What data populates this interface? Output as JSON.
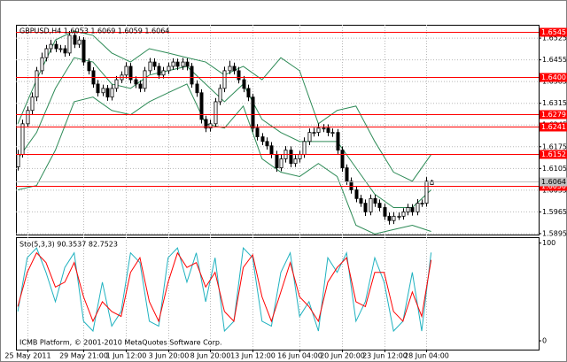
{
  "chart_data": [
    {
      "type": "candlestick",
      "title": "GBPUSD,H4  1.6053 1.6069 1.6059 1.6064",
      "annotation": "ICMB Platform, © 2001-2010 MetaQuotes Software Corp.",
      "open": [
        1.611,
        1.615,
        1.6249,
        1.6292,
        1.6335,
        1.642,
        1.6462,
        1.6491,
        1.6505,
        1.6491,
        1.6491,
        1.6477,
        1.6534,
        1.6505,
        1.6519,
        1.6448,
        1.642,
        1.6377,
        1.6349,
        1.6363,
        1.6335,
        1.6363,
        1.6391,
        1.6406,
        1.6434,
        1.6391,
        1.6377,
        1.6363,
        1.642,
        1.6448,
        1.6434,
        1.6406,
        1.642,
        1.6434,
        1.6448,
        1.6434,
        1.6448,
        1.6434,
        1.6377,
        1.6349,
        1.6263,
        1.6235,
        1.6249,
        1.632,
        1.6363,
        1.642,
        1.6434,
        1.642,
        1.6391,
        1.6363,
        1.6335,
        1.6235,
        1.6207,
        1.6192,
        1.6178,
        1.615,
        1.6107,
        1.6136,
        1.6164,
        1.6121,
        1.6136,
        1.615,
        1.6192,
        1.6221,
        1.6221,
        1.6235,
        1.6235,
        1.6221,
        1.6221,
        1.6164,
        1.6107,
        1.6064,
        1.6036,
        1.6008,
        1.5993,
        1.5965,
        1.6008,
        1.5993,
        1.5979,
        1.5951,
        1.5937,
        1.5951,
        1.5951,
        1.5965,
        1.5979,
        1.5965,
        1.5993,
        1.5993,
        1.6053
      ],
      "high": [
        1.6165,
        1.6262,
        1.6305,
        1.635,
        1.6432,
        1.6478,
        1.6503,
        1.652,
        1.6517,
        1.6503,
        1.6502,
        1.6548,
        1.6546,
        1.6531,
        1.6528,
        1.646,
        1.6431,
        1.639,
        1.6375,
        1.6374,
        1.6376,
        1.6403,
        1.6418,
        1.6447,
        1.6445,
        1.6402,
        1.6389,
        1.6432,
        1.6461,
        1.646,
        1.6445,
        1.6432,
        1.6446,
        1.646,
        1.6459,
        1.6461,
        1.646,
        1.6445,
        1.6389,
        1.636,
        1.6275,
        1.6262,
        1.6332,
        1.6376,
        1.6433,
        1.6452,
        1.6446,
        1.6432,
        1.6403,
        1.6375,
        1.6346,
        1.6248,
        1.6219,
        1.6205,
        1.619,
        1.6162,
        1.6149,
        1.6177,
        1.6176,
        1.6148,
        1.6162,
        1.6205,
        1.6234,
        1.6236,
        1.625,
        1.6248,
        1.6247,
        1.6234,
        1.6232,
        1.6176,
        1.6118,
        1.6076,
        1.6048,
        1.602,
        1.6005,
        1.6021,
        1.602,
        1.6005,
        1.5991,
        1.5963,
        1.5964,
        1.5963,
        1.5977,
        1.5991,
        1.599,
        1.6006,
        1.6005,
        1.6077,
        1.6069
      ],
      "low": [
        1.6098,
        1.614,
        1.6238,
        1.628,
        1.6322,
        1.6408,
        1.645,
        1.6478,
        1.648,
        1.6479,
        1.6465,
        1.6468,
        1.6493,
        1.6494,
        1.6436,
        1.6408,
        1.6365,
        1.6337,
        1.6338,
        1.6323,
        1.6324,
        1.6352,
        1.638,
        1.6395,
        1.6379,
        1.6364,
        1.6351,
        1.6352,
        1.6409,
        1.6422,
        1.6394,
        1.6395,
        1.6409,
        1.6423,
        1.6422,
        1.6423,
        1.6421,
        1.6365,
        1.6336,
        1.625,
        1.6222,
        1.6224,
        1.6238,
        1.6309,
        1.6351,
        1.6409,
        1.6408,
        1.6379,
        1.6351,
        1.6322,
        1.6222,
        1.6195,
        1.618,
        1.6166,
        1.6138,
        1.6094,
        1.6096,
        1.6124,
        1.6109,
        1.611,
        1.6124,
        1.6139,
        1.618,
        1.6208,
        1.6209,
        1.6222,
        1.6209,
        1.6207,
        1.6152,
        1.6094,
        1.6052,
        1.6024,
        1.5996,
        1.5981,
        1.5952,
        1.5954,
        1.5981,
        1.5967,
        1.5939,
        1.5924,
        1.5926,
        1.5939,
        1.594,
        1.5954,
        1.5953,
        1.5954,
        1.5981,
        1.5982,
        1.6059
      ],
      "close": [
        1.615,
        1.6249,
        1.6292,
        1.6335,
        1.642,
        1.6462,
        1.6491,
        1.6505,
        1.6491,
        1.6491,
        1.6477,
        1.6534,
        1.6505,
        1.6519,
        1.6448,
        1.642,
        1.6377,
        1.6349,
        1.6363,
        1.6335,
        1.6363,
        1.6391,
        1.6406,
        1.6434,
        1.6391,
        1.6377,
        1.6363,
        1.642,
        1.6448,
        1.6434,
        1.6406,
        1.642,
        1.6434,
        1.6448,
        1.6434,
        1.6448,
        1.6434,
        1.6377,
        1.6349,
        1.6263,
        1.6235,
        1.6249,
        1.632,
        1.6363,
        1.642,
        1.6434,
        1.642,
        1.6391,
        1.6363,
        1.6335,
        1.6235,
        1.6207,
        1.6192,
        1.6178,
        1.615,
        1.6107,
        1.6136,
        1.6164,
        1.6121,
        1.6136,
        1.615,
        1.6192,
        1.6221,
        1.6221,
        1.6235,
        1.6235,
        1.6221,
        1.6221,
        1.6164,
        1.6107,
        1.6064,
        1.6036,
        1.6008,
        1.5993,
        1.5965,
        1.6008,
        1.5993,
        1.5979,
        1.5951,
        1.5937,
        1.5951,
        1.5951,
        1.5965,
        1.5979,
        1.5965,
        1.5993,
        1.5993,
        1.6064,
        1.6064
      ],
      "up_color": "#ffffff",
      "down_color": "#000000",
      "series": [
        {
          "color": "#2e8b57",
          "x": [
            0,
            4,
            8,
            12,
            16,
            20,
            24,
            28,
            32,
            36,
            40,
            44,
            48,
            52,
            56,
            60,
            64,
            68,
            72,
            76,
            80,
            84,
            88
          ],
          "values": [
            1.6249,
            1.6391,
            1.6519,
            1.6548,
            1.6534,
            1.6477,
            1.6448,
            1.6491,
            1.6477,
            1.6462,
            1.6448,
            1.6406,
            1.6434,
            1.6391,
            1.6462,
            1.642,
            1.6249,
            1.6292,
            1.6306,
            1.6192,
            1.6093,
            1.6064,
            1.615
          ]
        },
        {
          "color": "#2e8b57",
          "x": [
            0,
            4,
            8,
            12,
            16,
            20,
            24,
            28,
            32,
            36,
            40,
            44,
            48,
            52,
            56,
            60,
            64,
            68,
            72,
            76,
            80,
            84,
            88
          ],
          "values": [
            1.6136,
            1.6221,
            1.6363,
            1.6462,
            1.6448,
            1.6377,
            1.6363,
            1.6406,
            1.642,
            1.6434,
            1.6377,
            1.632,
            1.6377,
            1.6263,
            1.6221,
            1.6192,
            1.6192,
            1.6192,
            1.6107,
            1.6022,
            1.5979,
            1.5979,
            1.6036
          ]
        },
        {
          "color": "#2e8b57",
          "x": [
            0,
            4,
            8,
            12,
            16,
            20,
            24,
            28,
            32,
            36,
            40,
            44,
            48,
            52,
            56,
            60,
            64,
            68,
            72,
            76,
            80,
            84,
            88
          ],
          "values": [
            1.6036,
            1.605,
            1.6164,
            1.632,
            1.6335,
            1.6292,
            1.6278,
            1.632,
            1.6349,
            1.6377,
            1.6249,
            1.6235,
            1.6306,
            1.6136,
            1.6093,
            1.6079,
            1.6121,
            1.6079,
            1.5922,
            1.5894,
            1.5908,
            1.5922,
            1.5902
          ]
        }
      ],
      "xlim": [
        -0.4,
        110.9
      ],
      "ylim": [
        1.5892,
        1.6568
      ],
      "yticks": [
        1.6525,
        1.6455,
        1.6385,
        1.6315,
        1.6245,
        1.6175,
        1.6105,
        1.6035,
        1.5965,
        1.5895
      ],
      "xticks": [
        {
          "value": 2,
          "label": "25 May 2011"
        },
        {
          "value": 14,
          "label": "29 May 21:00"
        },
        {
          "value": 23,
          "label": "1 Jun 12:00"
        },
        {
          "value": 32,
          "label": "3 Jun 20:00"
        },
        {
          "value": 41,
          "label": "8 Jun 20:00"
        },
        {
          "value": 50,
          "label": "13 Jun 12:00"
        },
        {
          "value": 60,
          "label": "16 Jun 04:00"
        },
        {
          "value": 69,
          "label": "20 Jun 20:00"
        },
        {
          "value": 78,
          "label": "23 Jun 12:00"
        },
        {
          "value": 87,
          "label": "28 Jun 04:00"
        }
      ],
      "grid": true,
      "levels": [
        1.6545,
        {
          "value": 1.64,
          "label": "1.6400"
        },
        1.6279,
        1.6241,
        1.6152,
        {
          "value": 1.605,
          "label": "1.6050"
        }
      ],
      "level_color": "#ff0000",
      "last_price": 1.6064,
      "last_price_color": "#c0c0c0"
    },
    {
      "type": "line",
      "title": "Sto(5,3,3) 90.3537 82.7523",
      "series": [
        {
          "color": "#20b2c0",
          "x": [
            0,
            2,
            4,
            6,
            8,
            10,
            12,
            14,
            16,
            18,
            20,
            22,
            24,
            26,
            28,
            30,
            32,
            34,
            36,
            38,
            40,
            42,
            44,
            46,
            48,
            50,
            52,
            54,
            56,
            58,
            60,
            62,
            64,
            66,
            68,
            70,
            72,
            74,
            76,
            78,
            80,
            82,
            84,
            86,
            88
          ],
          "values": [
            30,
            85,
            95,
            70,
            40,
            75,
            90,
            20,
            10,
            60,
            15,
            30,
            90,
            80,
            20,
            15,
            85,
            95,
            60,
            90,
            40,
            85,
            10,
            20,
            95,
            85,
            20,
            15,
            70,
            90,
            25,
            40,
            10,
            85,
            70,
            90,
            20,
            40,
            85,
            60,
            10,
            20,
            70,
            10,
            90.3537
          ]
        },
        {
          "color": "#ff0000",
          "x": [
            0,
            2,
            4,
            6,
            8,
            10,
            12,
            14,
            16,
            18,
            20,
            22,
            24,
            26,
            28,
            30,
            32,
            34,
            36,
            38,
            40,
            42,
            44,
            46,
            48,
            50,
            52,
            54,
            56,
            58,
            60,
            62,
            64,
            66,
            68,
            70,
            72,
            74,
            76,
            78,
            80,
            82,
            84,
            86,
            88
          ],
          "values": [
            35,
            70,
            90,
            80,
            55,
            60,
            80,
            45,
            20,
            40,
            30,
            25,
            70,
            85,
            40,
            20,
            60,
            90,
            75,
            80,
            55,
            70,
            30,
            20,
            75,
            88,
            45,
            20,
            50,
            80,
            45,
            35,
            20,
            60,
            75,
            85,
            40,
            35,
            70,
            70,
            30,
            20,
            50,
            25,
            82.7523
          ]
        }
      ],
      "xlim": [
        -0.4,
        110.9
      ],
      "ylim": [
        -9,
        106
      ],
      "yticks": [
        100,
        0
      ]
    }
  ]
}
